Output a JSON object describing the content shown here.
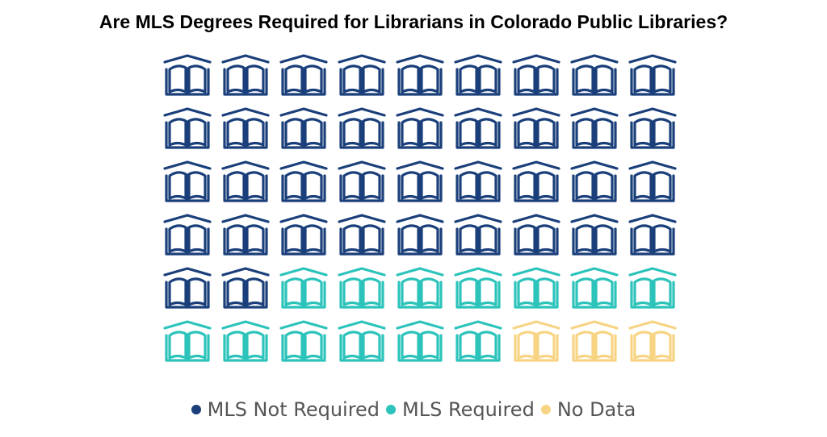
{
  "chart_data": {
    "type": "pictograph",
    "title": "Are MLS Degrees Required for Librarians in Colorado Public Libraries?",
    "unit_icon": "library-book-icon",
    "categories": [
      "MLS Not Required",
      "MLS Required",
      "No Data"
    ],
    "values": [
      38,
      13,
      3
    ],
    "colors": [
      "#1a3f7a",
      "#2cc3bb",
      "#f7d483"
    ],
    "legend_position": "bottom"
  }
}
